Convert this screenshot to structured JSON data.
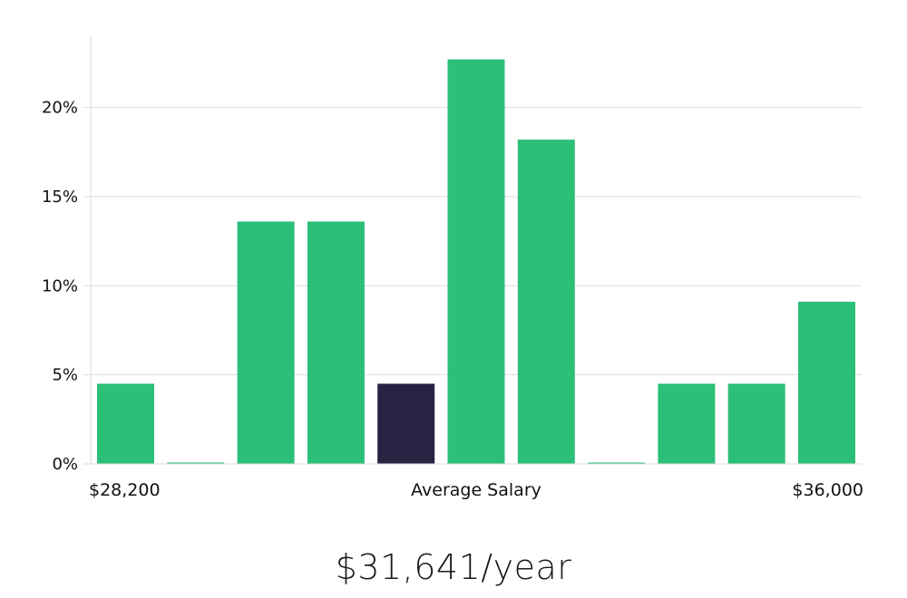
{
  "chart_data": {
    "type": "bar",
    "title": "",
    "xlabel": "Average Salary",
    "ylabel": "",
    "x_min_label": "$28,200",
    "x_max_label": "$36,000",
    "ylim": [
      0,
      24
    ],
    "yticks": [
      0,
      5,
      10,
      15,
      20
    ],
    "ytick_labels": [
      "0%",
      "5%",
      "10%",
      "15%",
      "20%"
    ],
    "grid": true,
    "values": [
      4.5,
      0,
      13.6,
      13.6,
      4.5,
      22.7,
      18.2,
      0,
      4.5,
      4.5,
      9.1
    ],
    "highlight_index": 4,
    "colors": {
      "bar": "#2bbf78",
      "highlight": "#272343",
      "grid": "#dddddd",
      "axis": "#dddddd"
    }
  },
  "salary_text": "$31,641/year"
}
